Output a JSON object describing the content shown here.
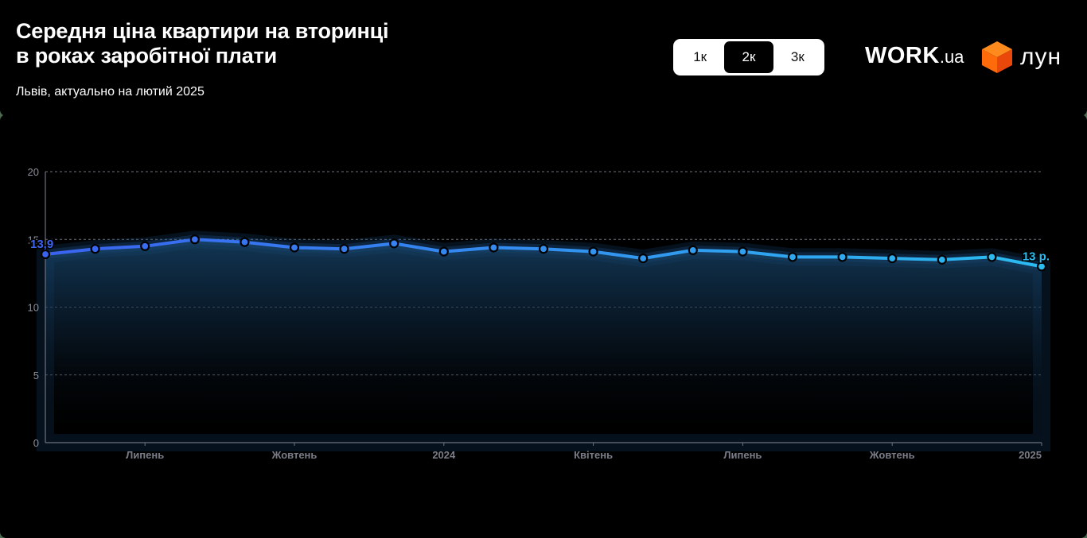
{
  "header": {
    "title_line1": "Середня ціна квартири на вторинці",
    "title_line2": "в роках заробітної плати",
    "subtitle": "Львів, актуально на лютий 2025"
  },
  "toggle": {
    "options": [
      {
        "label": "1к",
        "active": false
      },
      {
        "label": "2к",
        "active": true
      },
      {
        "label": "3к",
        "active": false
      }
    ]
  },
  "logos": {
    "work_main": "WORK",
    "work_suffix": ".ua",
    "lun_text": "лун",
    "lun_color": "#ff5a0a"
  },
  "colors": {
    "background": "#000000",
    "line_start": "#3a6cf2",
    "line_end": "#29b5ee",
    "grid": "#6d7280",
    "axis": "#8d8f99"
  },
  "chart_data": {
    "type": "line",
    "title": "Середня ціна квартири на вторинці в роках заробітної плати",
    "subtitle": "Львів, актуально на лютий 2025",
    "xlabel": "",
    "ylabel": "",
    "ylim": [
      0,
      20
    ],
    "yticks": [
      0,
      5,
      10,
      15,
      20
    ],
    "grid": true,
    "legend": "none",
    "x": [
      "2023-05",
      "2023-06",
      "2023-07",
      "2023-08",
      "2023-09",
      "2023-10",
      "2023-11",
      "2023-12",
      "2024-01",
      "2024-02",
      "2024-03",
      "2024-04",
      "2024-05",
      "2024-06",
      "2024-07",
      "2024-08",
      "2024-09",
      "2024-10",
      "2024-11",
      "2024-12",
      "2025-01"
    ],
    "xtick_labels": [
      {
        "x": "2023-07",
        "label": "Липень"
      },
      {
        "x": "2023-10",
        "label": "Жовтень"
      },
      {
        "x": "2024-01",
        "label": "2024"
      },
      {
        "x": "2024-04",
        "label": "Квітень"
      },
      {
        "x": "2024-07",
        "label": "Липень"
      },
      {
        "x": "2024-10",
        "label": "Жовтень"
      },
      {
        "x": "2025-01",
        "label": "2025"
      }
    ],
    "series": [
      {
        "name": "2к",
        "values": [
          13.9,
          14.3,
          14.5,
          15.0,
          14.8,
          14.4,
          14.3,
          14.7,
          14.1,
          14.4,
          14.3,
          14.1,
          13.6,
          14.2,
          14.1,
          13.7,
          13.7,
          13.6,
          13.5,
          13.7,
          13.0
        ]
      }
    ],
    "annotations": [
      {
        "x": "2023-05",
        "text": "13,9"
      },
      {
        "x": "2025-01",
        "text": "13 р."
      }
    ]
  }
}
